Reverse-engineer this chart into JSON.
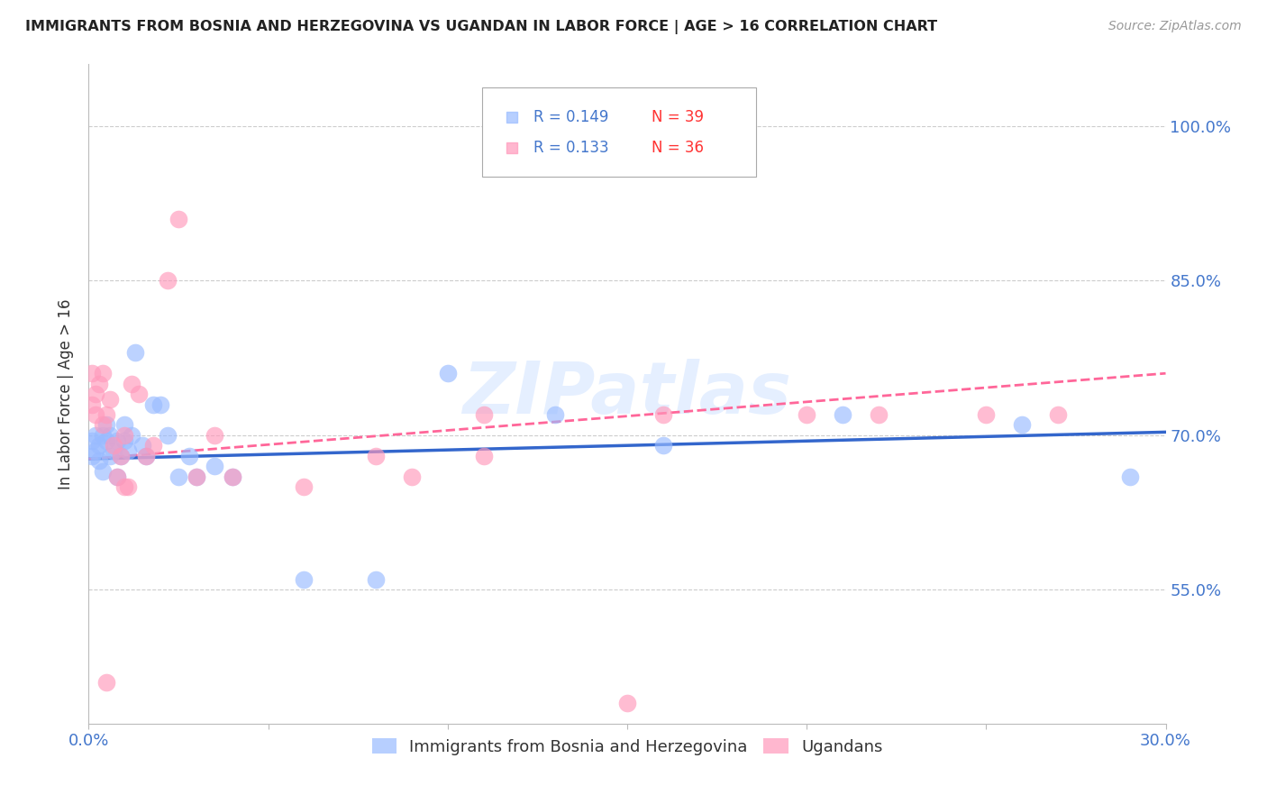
{
  "title": "IMMIGRANTS FROM BOSNIA AND HERZEGOVINA VS UGANDAN IN LABOR FORCE | AGE > 16 CORRELATION CHART",
  "source": "Source: ZipAtlas.com",
  "ylabel": "In Labor Force | Age > 16",
  "ytick_labels": [
    "55.0%",
    "70.0%",
    "85.0%",
    "100.0%"
  ],
  "ytick_values": [
    0.55,
    0.7,
    0.85,
    1.0
  ],
  "xlim": [
    0.0,
    0.3
  ],
  "ylim": [
    0.42,
    1.06
  ],
  "legend_r1": "R = 0.149",
  "legend_n1": "N = 39",
  "legend_r2": "R = 0.133",
  "legend_n2": "N = 36",
  "color_blue": "#99BBFF",
  "color_pink": "#FF99BB",
  "color_blue_line": "#3366CC",
  "color_pink_line": "#FF6699",
  "color_axis_label": "#4477CC",
  "watermark": "ZIPatlas",
  "bosnia_x": [
    0.001,
    0.001,
    0.002,
    0.002,
    0.003,
    0.003,
    0.004,
    0.004,
    0.005,
    0.005,
    0.006,
    0.006,
    0.007,
    0.008,
    0.008,
    0.009,
    0.01,
    0.01,
    0.011,
    0.012,
    0.013,
    0.015,
    0.016,
    0.018,
    0.02,
    0.022,
    0.025,
    0.028,
    0.03,
    0.035,
    0.04,
    0.06,
    0.08,
    0.1,
    0.13,
    0.16,
    0.21,
    0.26,
    0.29
  ],
  "bosnia_y": [
    0.68,
    0.695,
    0.685,
    0.7,
    0.675,
    0.69,
    0.7,
    0.665,
    0.71,
    0.695,
    0.68,
    0.7,
    0.685,
    0.66,
    0.695,
    0.68,
    0.71,
    0.695,
    0.685,
    0.7,
    0.78,
    0.69,
    0.68,
    0.73,
    0.73,
    0.7,
    0.66,
    0.68,
    0.66,
    0.67,
    0.66,
    0.56,
    0.56,
    0.76,
    0.72,
    0.69,
    0.72,
    0.71,
    0.66
  ],
  "ugandan_x": [
    0.001,
    0.001,
    0.002,
    0.002,
    0.003,
    0.004,
    0.004,
    0.005,
    0.006,
    0.007,
    0.008,
    0.009,
    0.01,
    0.011,
    0.012,
    0.014,
    0.016,
    0.018,
    0.022,
    0.025,
    0.03,
    0.035,
    0.04,
    0.06,
    0.08,
    0.09,
    0.11,
    0.15,
    0.2,
    0.22,
    0.25,
    0.27,
    0.11,
    0.16,
    0.005,
    0.01
  ],
  "ugandan_y": [
    0.73,
    0.76,
    0.74,
    0.72,
    0.75,
    0.71,
    0.76,
    0.72,
    0.735,
    0.69,
    0.66,
    0.68,
    0.7,
    0.65,
    0.75,
    0.74,
    0.68,
    0.69,
    0.85,
    0.91,
    0.66,
    0.7,
    0.66,
    0.65,
    0.68,
    0.66,
    0.68,
    0.44,
    0.72,
    0.72,
    0.72,
    0.72,
    0.72,
    0.72,
    0.46,
    0.65
  ]
}
